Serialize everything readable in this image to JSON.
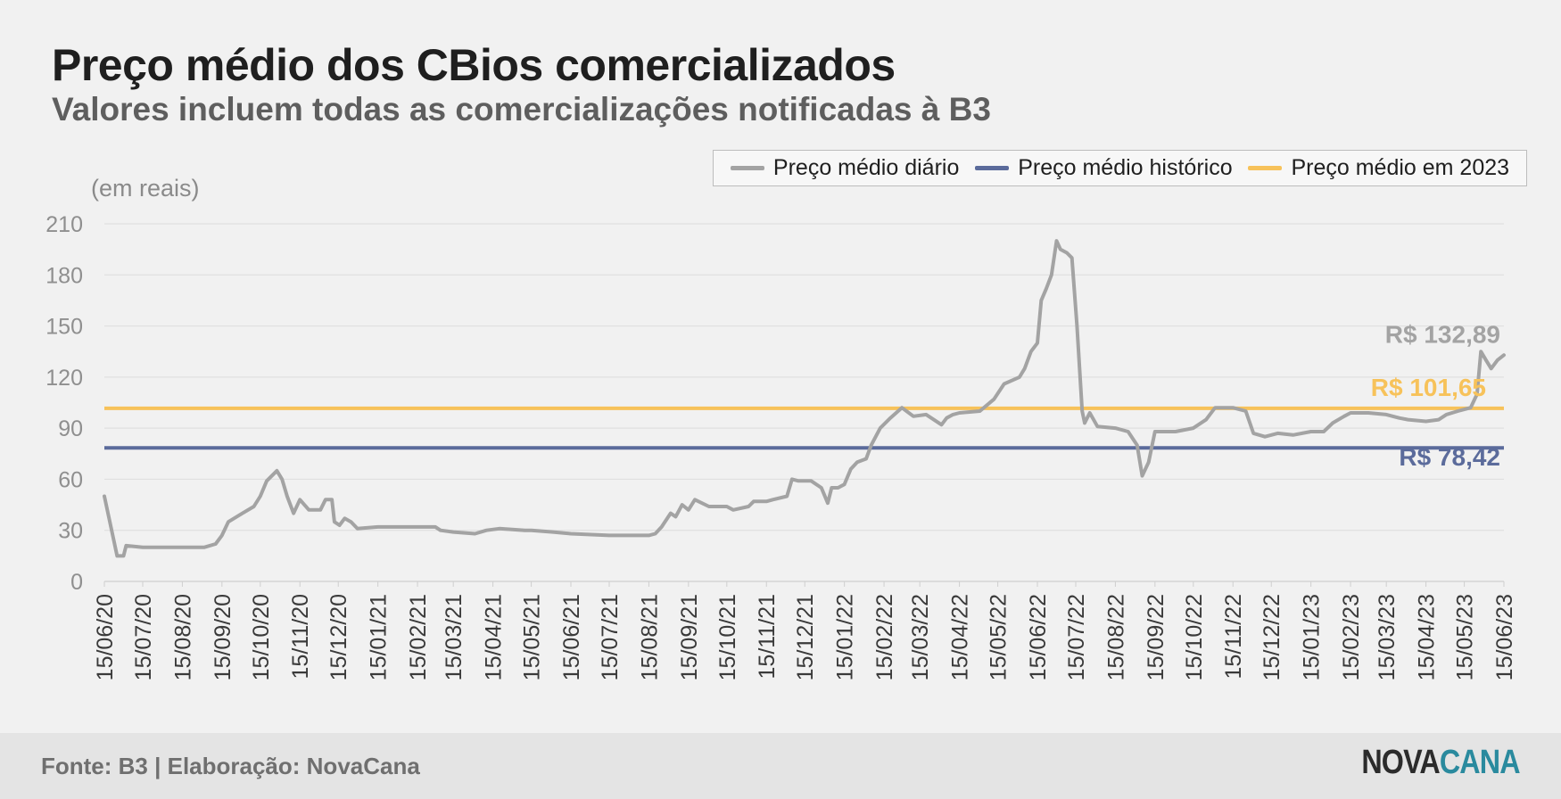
{
  "header": {
    "title": "Preço médio dos CBios comercializados",
    "subtitle": "Valores incluem todas as comercializações notificadas à B3",
    "unit_label": "(em reais)"
  },
  "legend": {
    "items": [
      {
        "label": "Preço médio diário",
        "color": "#a3a3a3"
      },
      {
        "label": "Preço médio histórico",
        "color": "#5b6b9b"
      },
      {
        "label": "Preço médio em 2023",
        "color": "#f7c25a"
      }
    ]
  },
  "footer": {
    "source": "Fonte: B3 | Elaboração: NovaCana",
    "logo_part1": "NOVA",
    "logo_part2": "CANA"
  },
  "chart_data": {
    "type": "line",
    "title": "Preço médio dos CBios comercializados",
    "subtitle": "Valores incluem todas as comercializações notificadas à B3",
    "ylabel": "(em reais)",
    "ylim": [
      0,
      210
    ],
    "yticks": [
      0,
      30,
      60,
      90,
      120,
      150,
      180,
      210
    ],
    "xlim": [
      "2020-06-15",
      "2023-06-15"
    ],
    "xticks": [
      "15/06/20",
      "15/07/20",
      "15/08/20",
      "15/09/20",
      "15/10/20",
      "15/11/20",
      "15/12/20",
      "15/01/21",
      "15/02/21",
      "15/03/21",
      "15/04/21",
      "15/05/21",
      "15/06/21",
      "15/07/21",
      "15/08/21",
      "15/09/21",
      "15/10/21",
      "15/11/21",
      "15/12/21",
      "15/01/22",
      "15/02/22",
      "15/03/22",
      "15/04/22",
      "15/05/22",
      "15/06/22",
      "15/07/22",
      "15/08/22",
      "15/09/22",
      "15/10/22",
      "15/11/22",
      "15/12/22",
      "15/01/23",
      "15/02/23",
      "15/03/23",
      "15/04/23",
      "15/05/23",
      "15/06/23"
    ],
    "grid": "horizontal",
    "legend_position": "top-right",
    "annotations": [
      {
        "text": "R$ 132,89",
        "color": "#a3a3a3"
      },
      {
        "text": "R$ 101,65",
        "color": "#f7c25a"
      },
      {
        "text": "R$ 78,42",
        "color": "#5b6b9b"
      }
    ],
    "series": [
      {
        "name": "Preço médio diário",
        "color": "#a3a3a3",
        "points": [
          [
            "2020-06-15",
            50
          ],
          [
            "2020-06-25",
            15
          ],
          [
            "2020-06-30",
            15
          ],
          [
            "2020-07-02",
            21
          ],
          [
            "2020-07-15",
            20
          ],
          [
            "2020-08-01",
            20
          ],
          [
            "2020-08-15",
            20
          ],
          [
            "2020-09-01",
            20
          ],
          [
            "2020-09-10",
            22
          ],
          [
            "2020-09-15",
            27
          ],
          [
            "2020-09-20",
            35
          ],
          [
            "2020-10-01",
            40
          ],
          [
            "2020-10-10",
            44
          ],
          [
            "2020-10-15",
            50
          ],
          [
            "2020-10-20",
            59
          ],
          [
            "2020-10-28",
            65
          ],
          [
            "2020-11-01",
            60
          ],
          [
            "2020-11-05",
            50
          ],
          [
            "2020-11-10",
            40
          ],
          [
            "2020-11-15",
            48
          ],
          [
            "2020-11-22",
            42
          ],
          [
            "2020-12-01",
            42
          ],
          [
            "2020-12-05",
            48
          ],
          [
            "2020-12-10",
            48
          ],
          [
            "2020-12-12",
            35
          ],
          [
            "2020-12-16",
            33
          ],
          [
            "2020-12-20",
            37
          ],
          [
            "2020-12-25",
            35
          ],
          [
            "2020-12-30",
            31
          ],
          [
            "2021-01-15",
            32
          ],
          [
            "2021-02-15",
            32
          ],
          [
            "2021-03-01",
            32
          ],
          [
            "2021-03-05",
            30
          ],
          [
            "2021-03-15",
            29
          ],
          [
            "2021-04-01",
            28
          ],
          [
            "2021-04-10",
            30
          ],
          [
            "2021-04-20",
            31
          ],
          [
            "2021-05-10",
            30
          ],
          [
            "2021-05-15",
            30
          ],
          [
            "2021-06-01",
            29
          ],
          [
            "2021-06-15",
            28
          ],
          [
            "2021-07-15",
            27
          ],
          [
            "2021-08-15",
            27
          ],
          [
            "2021-08-20",
            28
          ],
          [
            "2021-08-25",
            32
          ],
          [
            "2021-09-01",
            40
          ],
          [
            "2021-09-05",
            38
          ],
          [
            "2021-09-10",
            45
          ],
          [
            "2021-09-15",
            42
          ],
          [
            "2021-09-20",
            48
          ],
          [
            "2021-10-01",
            44
          ],
          [
            "2021-10-15",
            44
          ],
          [
            "2021-10-20",
            42
          ],
          [
            "2021-11-01",
            44
          ],
          [
            "2021-11-05",
            47
          ],
          [
            "2021-11-15",
            47
          ],
          [
            "2021-11-20",
            48
          ],
          [
            "2021-12-01",
            50
          ],
          [
            "2021-12-05",
            60
          ],
          [
            "2021-12-10",
            59
          ],
          [
            "2021-12-20",
            59
          ],
          [
            "2021-12-28",
            55
          ],
          [
            "2022-01-02",
            46
          ],
          [
            "2022-01-05",
            55
          ],
          [
            "2022-01-10",
            55
          ],
          [
            "2022-01-15",
            57
          ],
          [
            "2022-01-20",
            66
          ],
          [
            "2022-01-25",
            70
          ],
          [
            "2022-02-01",
            72
          ],
          [
            "2022-02-05",
            80
          ],
          [
            "2022-02-12",
            90
          ],
          [
            "2022-02-20",
            96
          ],
          [
            "2022-03-01",
            102
          ],
          [
            "2022-03-10",
            97
          ],
          [
            "2022-03-20",
            98
          ],
          [
            "2022-04-01",
            92
          ],
          [
            "2022-04-05",
            96
          ],
          [
            "2022-04-10",
            98
          ],
          [
            "2022-04-15",
            99
          ],
          [
            "2022-05-01",
            100
          ],
          [
            "2022-05-12",
            107
          ],
          [
            "2022-05-20",
            116
          ],
          [
            "2022-06-01",
            120
          ],
          [
            "2022-06-05",
            125
          ],
          [
            "2022-06-10",
            135
          ],
          [
            "2022-06-15",
            140
          ],
          [
            "2022-06-18",
            165
          ],
          [
            "2022-06-22",
            172
          ],
          [
            "2022-06-26",
            180
          ],
          [
            "2022-06-30",
            200
          ],
          [
            "2022-07-03",
            195
          ],
          [
            "2022-07-08",
            193
          ],
          [
            "2022-07-12",
            190
          ],
          [
            "2022-07-16",
            150
          ],
          [
            "2022-07-20",
            100
          ],
          [
            "2022-07-22",
            93
          ],
          [
            "2022-07-26",
            99
          ],
          [
            "2022-08-01",
            91
          ],
          [
            "2022-08-15",
            90
          ],
          [
            "2022-08-25",
            88
          ],
          [
            "2022-09-01",
            80
          ],
          [
            "2022-09-05",
            62
          ],
          [
            "2022-09-10",
            70
          ],
          [
            "2022-09-15",
            88
          ],
          [
            "2022-09-25",
            88
          ],
          [
            "2022-10-01",
            88
          ],
          [
            "2022-10-15",
            90
          ],
          [
            "2022-10-25",
            95
          ],
          [
            "2022-11-01",
            102
          ],
          [
            "2022-11-10",
            102
          ],
          [
            "2022-11-15",
            102
          ],
          [
            "2022-11-25",
            100
          ],
          [
            "2022-12-01",
            87
          ],
          [
            "2022-12-10",
            85
          ],
          [
            "2022-12-20",
            87
          ],
          [
            "2023-01-01",
            86
          ],
          [
            "2023-01-15",
            88
          ],
          [
            "2023-01-25",
            88
          ],
          [
            "2023-02-01",
            93
          ],
          [
            "2023-02-10",
            97
          ],
          [
            "2023-02-15",
            99
          ],
          [
            "2023-03-01",
            99
          ],
          [
            "2023-03-15",
            98
          ],
          [
            "2023-03-25",
            96
          ],
          [
            "2023-04-01",
            95
          ],
          [
            "2023-04-15",
            94
          ],
          [
            "2023-04-25",
            95
          ],
          [
            "2023-05-01",
            98
          ],
          [
            "2023-05-10",
            100
          ],
          [
            "2023-05-20",
            102
          ],
          [
            "2023-05-25",
            110
          ],
          [
            "2023-05-28",
            135
          ],
          [
            "2023-06-01",
            130
          ],
          [
            "2023-06-05",
            125
          ],
          [
            "2023-06-10",
            130
          ],
          [
            "2023-06-15",
            132.89
          ]
        ]
      },
      {
        "name": "Preço médio histórico",
        "color": "#5b6b9b",
        "value": 78.42
      },
      {
        "name": "Preço médio em 2023",
        "color": "#f7c25a",
        "value": 101.65
      }
    ]
  }
}
